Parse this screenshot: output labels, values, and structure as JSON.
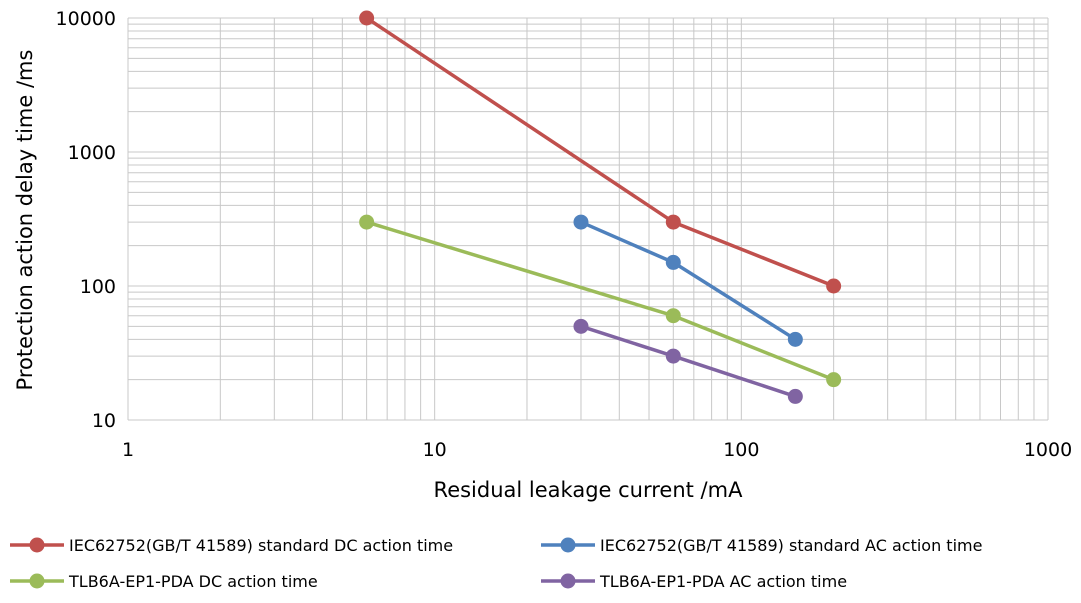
{
  "chart_data": {
    "type": "line",
    "title": "",
    "xlabel": "Residual leakage current /mA",
    "ylabel": "Protection action delay time /ms",
    "xscale": "log",
    "yscale": "log",
    "xlim": [
      1,
      1000
    ],
    "ylim": [
      10,
      10000
    ],
    "x_ticks": [
      1,
      10,
      100,
      1000
    ],
    "x_tick_labels": [
      "1",
      "10",
      "100",
      "1000"
    ],
    "y_ticks": [
      10,
      100,
      1000,
      10000
    ],
    "y_tick_labels": [
      "10",
      "100",
      "1000",
      "10000"
    ],
    "grid": true,
    "legend_position": "bottom",
    "series": [
      {
        "name": "IEC62752(GB/T 41589) standard DC action time",
        "color": "#c0504d",
        "x": [
          6,
          60,
          200
        ],
        "y": [
          10000,
          300,
          100
        ]
      },
      {
        "name": "IEC62752(GB/T 41589) standard AC action time",
        "color": "#4f81bd",
        "x": [
          30,
          60,
          150
        ],
        "y": [
          300,
          150,
          40
        ]
      },
      {
        "name": "TLB6A-EP1-PDA DC action time",
        "color": "#9bbb59",
        "x": [
          6,
          60,
          200
        ],
        "y": [
          300,
          60,
          20
        ]
      },
      {
        "name": "TLB6A-EP1-PDA AC action time",
        "color": "#8064a2",
        "x": [
          30,
          60,
          150
        ],
        "y": [
          50,
          30,
          15
        ]
      }
    ]
  }
}
